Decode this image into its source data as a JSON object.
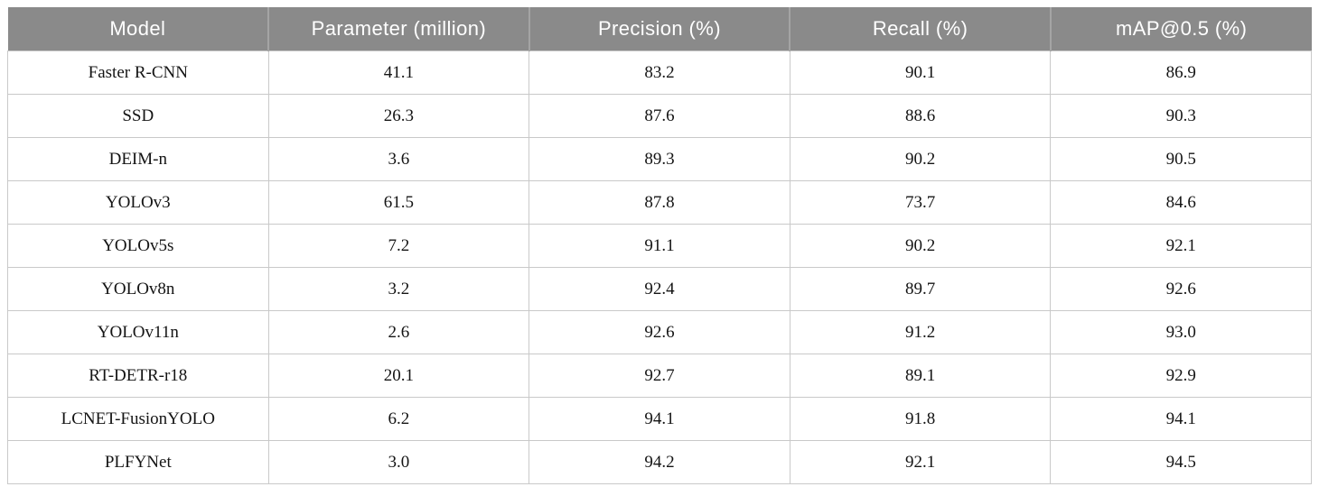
{
  "table": {
    "columns": [
      "Model",
      "Parameter (million)",
      "Precision (%)",
      "Recall (%)",
      "mAP@0.5 (%)"
    ],
    "rows": [
      [
        "Faster R-CNN",
        "41.1",
        "83.2",
        "90.1",
        "86.9"
      ],
      [
        "SSD",
        "26.3",
        "87.6",
        "88.6",
        "90.3"
      ],
      [
        "DEIM-n",
        "3.6",
        "89.3",
        "90.2",
        "90.5"
      ],
      [
        "YOLOv3",
        "61.5",
        "87.8",
        "73.7",
        "84.6"
      ],
      [
        "YOLOv5s",
        "7.2",
        "91.1",
        "90.2",
        "92.1"
      ],
      [
        "YOLOv8n",
        "3.2",
        "92.4",
        "89.7",
        "92.6"
      ],
      [
        "YOLOv11n",
        "2.6",
        "92.6",
        "91.2",
        "93.0"
      ],
      [
        "RT-DETR-r18",
        "20.1",
        "92.7",
        "89.1",
        "92.9"
      ],
      [
        "LCNET-FusionYOLO",
        "6.2",
        "94.1",
        "91.8",
        "94.1"
      ],
      [
        "PLFYNet",
        "3.0",
        "94.2",
        "92.1",
        "94.5"
      ]
    ]
  },
  "colors": {
    "header_bg": "#8a8a8a",
    "header_text": "#ffffff",
    "header_separator": "#a4a4a4",
    "body_border": "#c9c9c9",
    "body_text": "#141414"
  },
  "chart_data": {
    "type": "table",
    "title": "",
    "columns": [
      "Model",
      "Parameter (million)",
      "Precision (%)",
      "Recall (%)",
      "mAP@0.5 (%)"
    ],
    "rows": [
      [
        "Faster R-CNN",
        41.1,
        83.2,
        90.1,
        86.9
      ],
      [
        "SSD",
        26.3,
        87.6,
        88.6,
        90.3
      ],
      [
        "DEIM-n",
        3.6,
        89.3,
        90.2,
        90.5
      ],
      [
        "YOLOv3",
        61.5,
        87.8,
        73.7,
        84.6
      ],
      [
        "YOLOv5s",
        7.2,
        91.1,
        90.2,
        92.1
      ],
      [
        "YOLOv8n",
        3.2,
        92.4,
        89.7,
        92.6
      ],
      [
        "YOLOv11n",
        2.6,
        92.6,
        91.2,
        93.0
      ],
      [
        "RT-DETR-r18",
        20.1,
        92.7,
        89.1,
        92.9
      ],
      [
        "LCNET-FusionYOLO",
        6.2,
        94.1,
        91.8,
        94.1
      ],
      [
        "PLFYNet",
        3.0,
        94.2,
        92.1,
        94.5
      ]
    ]
  }
}
